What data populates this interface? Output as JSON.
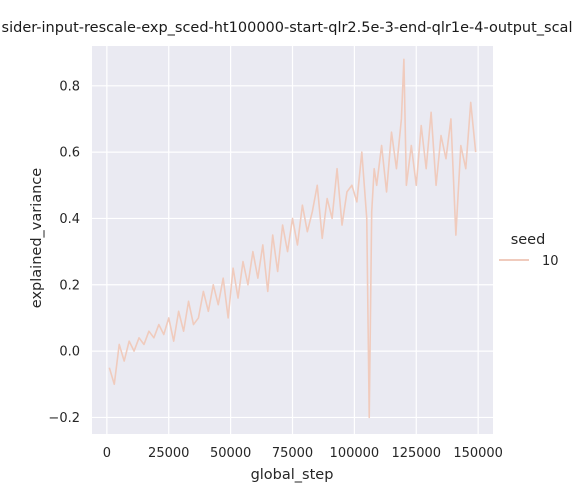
{
  "chart_data": {
    "type": "line",
    "title": "sider-input-rescale-exp_sced-ht100000-start-qlr2.5e-3-end-qlr1e-4-output_scal",
    "xlabel": "global_step",
    "ylabel": "explained_variance",
    "xlim": [
      -6000,
      156000
    ],
    "ylim": [
      -0.25,
      0.92
    ],
    "xticks": [
      0,
      25000,
      50000,
      75000,
      100000,
      125000,
      150000
    ],
    "yticks": [
      -0.2,
      0.0,
      0.2,
      0.4,
      0.6,
      0.8
    ],
    "xtick_labels": [
      "0",
      "25000",
      "50000",
      "75000",
      "100000",
      "125000",
      "150000"
    ],
    "ytick_labels": [
      "−0.2",
      "0.0",
      "0.2",
      "0.4",
      "0.6",
      "0.8"
    ],
    "grid": true,
    "background": "#eaeaf2",
    "legend": {
      "title": "seed",
      "placement": "right",
      "entries": [
        "10"
      ]
    },
    "series": [
      {
        "name": "10",
        "color": "#f0cbbd",
        "x": [
          1000,
          3000,
          5000,
          7000,
          9000,
          11000,
          13000,
          15000,
          17000,
          19000,
          21000,
          23000,
          25000,
          27000,
          29000,
          31000,
          33000,
          35000,
          37000,
          39000,
          41000,
          43000,
          45000,
          47000,
          49000,
          51000,
          53000,
          55000,
          57000,
          59000,
          61000,
          63000,
          65000,
          67000,
          69000,
          71000,
          73000,
          75000,
          77000,
          79000,
          81000,
          83000,
          85000,
          87000,
          89000,
          91000,
          93000,
          95000,
          97000,
          99000,
          101000,
          103000,
          105000,
          106000,
          107000,
          108000,
          109000,
          111000,
          113000,
          115000,
          117000,
          119000,
          120000,
          121000,
          123000,
          125000,
          127000,
          129000,
          131000,
          133000,
          135000,
          137000,
          139000,
          141000,
          143000,
          145000,
          147000,
          149000
        ],
        "y": [
          -0.05,
          -0.1,
          0.02,
          -0.03,
          0.03,
          0.0,
          0.04,
          0.02,
          0.06,
          0.04,
          0.08,
          0.05,
          0.1,
          0.03,
          0.12,
          0.06,
          0.15,
          0.08,
          0.1,
          0.18,
          0.12,
          0.2,
          0.14,
          0.22,
          0.1,
          0.25,
          0.16,
          0.27,
          0.2,
          0.3,
          0.22,
          0.32,
          0.18,
          0.35,
          0.24,
          0.38,
          0.3,
          0.4,
          0.32,
          0.44,
          0.36,
          0.42,
          0.5,
          0.34,
          0.46,
          0.4,
          0.55,
          0.38,
          0.48,
          0.5,
          0.45,
          0.6,
          0.4,
          -0.2,
          0.42,
          0.55,
          0.5,
          0.62,
          0.48,
          0.66,
          0.55,
          0.7,
          0.88,
          0.5,
          0.62,
          0.5,
          0.68,
          0.55,
          0.72,
          0.5,
          0.65,
          0.58,
          0.7,
          0.35,
          0.62,
          0.55,
          0.75,
          0.6
        ]
      }
    ]
  }
}
